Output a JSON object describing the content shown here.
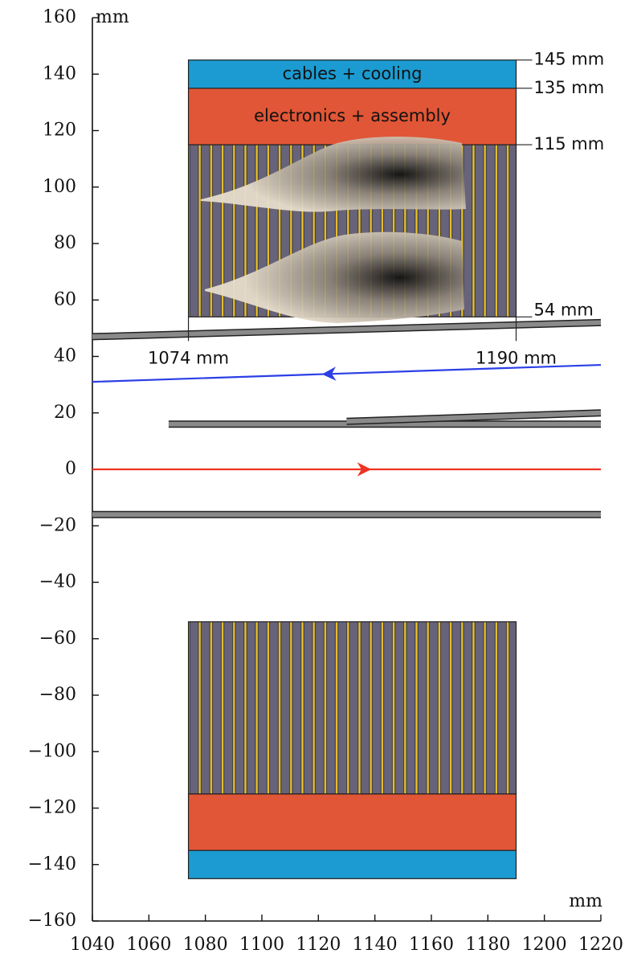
{
  "chart_data": {
    "type": "schematic",
    "x_label": "mm",
    "y_label": "mm",
    "xlim": [
      1040,
      1220
    ],
    "xticks": [
      1040,
      1060,
      1080,
      1100,
      1120,
      1140,
      1160,
      1180,
      1200,
      1220
    ],
    "ylim": [
      -160,
      160
    ],
    "yticks": [
      {
        "value": -160,
        "label": "−160"
      },
      {
        "value": -140,
        "label": "−140"
      },
      {
        "value": -120,
        "label": "−120"
      },
      {
        "value": -100,
        "label": "−100"
      },
      {
        "value": -80,
        "label": "−80"
      },
      {
        "value": -60,
        "label": "−60"
      },
      {
        "value": -40,
        "label": "−40"
      },
      {
        "value": -20,
        "label": "−20"
      },
      0,
      20,
      40,
      60,
      80,
      100,
      120,
      140,
      160
    ],
    "modules": [
      {
        "x": [
          1074,
          1190
        ],
        "layers": [
          {
            "kind": "detector",
            "y": [
              54,
              115
            ],
            "color": "#67637a"
          },
          {
            "kind": "electronics",
            "label": "electronics + assembly",
            "y": [
              115,
              135
            ],
            "color": "#e15636"
          },
          {
            "kind": "cables",
            "label": "cables + cooling",
            "y": [
              135,
              145
            ],
            "color": "#1b9bd1"
          }
        ]
      },
      {
        "x": [
          1074,
          1190
        ],
        "layers": [
          {
            "kind": "detector",
            "y": [
              -115,
              -54
            ],
            "color": "#67637a"
          },
          {
            "kind": "electronics",
            "y": [
              -135,
              -115
            ],
            "color": "#e15636"
          },
          {
            "kind": "cables",
            "y": [
              -145,
              -135
            ],
            "color": "#1b9bd1"
          }
        ]
      }
    ],
    "y_dimensions": [
      {
        "value": 145,
        "label": "145 mm"
      },
      {
        "value": 135,
        "label": "135 mm"
      },
      {
        "value": 115,
        "label": "115 mm"
      },
      {
        "value": 54,
        "label": "54 mm"
      }
    ],
    "x_dimensions": [
      {
        "value": 1074,
        "label": "1074 mm"
      },
      {
        "value": 1190,
        "label": "1190 mm"
      }
    ],
    "pipes": [
      {
        "x": [
          1040,
          1220
        ],
        "y": [
          47,
          52
        ],
        "color": "#8a8a8a"
      },
      {
        "x": [
          1067,
          1220
        ],
        "y": [
          16,
          16
        ],
        "color": "#8a8a8a"
      },
      {
        "x": [
          1130,
          1220
        ],
        "y": [
          17,
          20
        ],
        "color": "#8a8a8a"
      },
      {
        "x": [
          1040,
          1220
        ],
        "y": [
          -16,
          -16
        ],
        "color": "#8a8a8a"
      }
    ],
    "tracks": [
      {
        "x": [
          1220,
          1040
        ],
        "y": [
          37,
          31
        ],
        "color": "#2b3fe6"
      },
      {
        "x": [
          1040,
          1220
        ],
        "y": [
          0,
          0
        ],
        "color": "#ee3322"
      }
    ]
  }
}
